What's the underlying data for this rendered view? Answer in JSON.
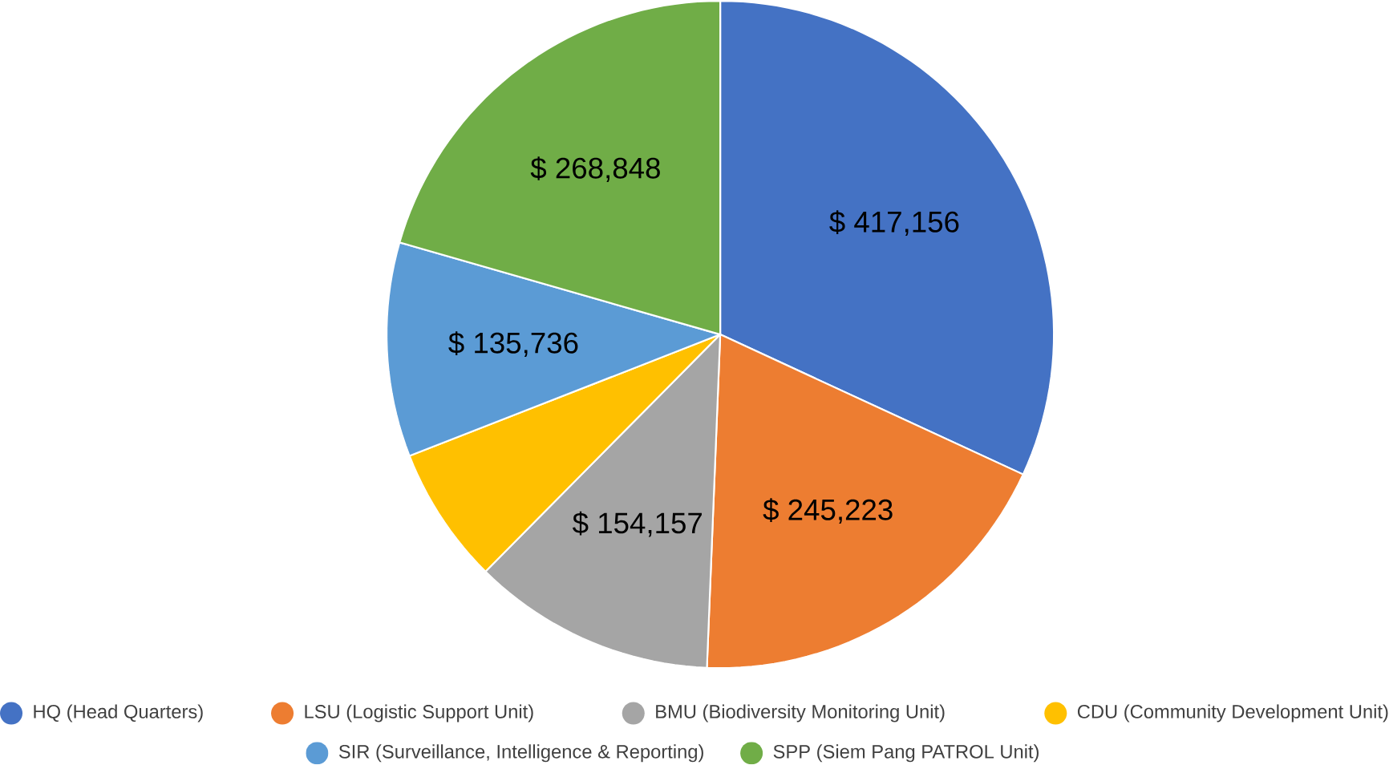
{
  "chart_data": {
    "type": "pie",
    "categories": [
      "HQ (Head Quarters)",
      "LSU (Logistic Support Unit)",
      "BMU (Biodiversity Monitoring Unit)",
      "CDU (Community Development Unit)",
      "SIR (Surveillance, Intelligence & Reporting)",
      "SPP (Siem Pang PATROL Unit)"
    ],
    "values": [
      417156,
      245223,
      154157,
      87000,
      135736,
      268848
    ],
    "value_labels": [
      "$ 417,156",
      "$ 245,223",
      "$ 154,157",
      null,
      "$ 135,736",
      "$ 268,848"
    ],
    "colors": [
      "#4472c4",
      "#ed7d31",
      "#a5a5a5",
      "#ffc000",
      "#5b9bd5",
      "#70ad47"
    ],
    "legend": "bottom"
  }
}
